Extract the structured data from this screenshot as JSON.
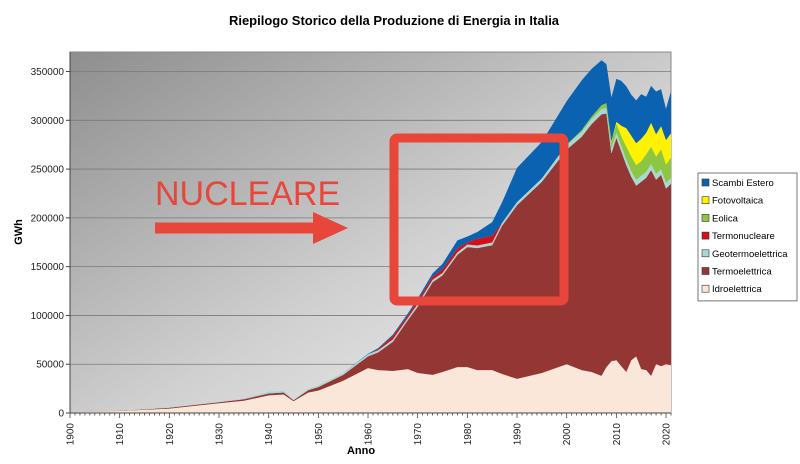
{
  "chart_data": {
    "type": "area",
    "title": "Riepilogo Storico della Produzione di Energia in Italia",
    "xlabel": "Anno",
    "ylabel": "GWh",
    "xlim": [
      1900,
      2021
    ],
    "ylim": [
      0,
      370000
    ],
    "xticks": [
      1900,
      1910,
      1920,
      1930,
      1940,
      1950,
      1960,
      1970,
      1980,
      1990,
      2000,
      2010,
      2020
    ],
    "yticks": [
      0,
      50000,
      100000,
      150000,
      200000,
      250000,
      300000,
      350000
    ],
    "grid": true,
    "legend_position": "right",
    "stacked": true,
    "x": [
      1900,
      1910,
      1920,
      1930,
      1935,
      1940,
      1943,
      1945,
      1948,
      1950,
      1955,
      1960,
      1962,
      1965,
      1968,
      1970,
      1973,
      1975,
      1978,
      1980,
      1982,
      1985,
      1987,
      1990,
      1995,
      2000,
      2003,
      2005,
      2007,
      2008,
      2009,
      2010,
      2011,
      2012,
      2013,
      2014,
      2015,
      2016,
      2017,
      2018,
      2019,
      2020,
      2021
    ],
    "series": [
      {
        "name": "Idroelettrica",
        "values": [
          500,
          2000,
          4500,
          10000,
          12500,
          18000,
          19000,
          12000,
          21000,
          23000,
          33000,
          46000,
          44000,
          43000,
          45000,
          41000,
          39000,
          42000,
          47000,
          47000,
          44000,
          44000,
          40000,
          35000,
          41000,
          50000,
          44000,
          42000,
          38000,
          47000,
          53000,
          54000,
          48000,
          42000,
          54000,
          58000,
          45000,
          44000,
          38000,
          50000,
          48000,
          50000,
          49000
        ]
      },
      {
        "name": "Termoelettrica",
        "values": [
          0,
          200,
          800,
          1000,
          1500,
          2000,
          2000,
          1000,
          2500,
          3500,
          6000,
          12000,
          18000,
          30000,
          50000,
          68000,
          95000,
          99000,
          115000,
          123000,
          125000,
          128000,
          152000,
          178000,
          196000,
          220000,
          239000,
          254000,
          268000,
          260000,
          213000,
          228000,
          220000,
          212000,
          188000,
          175000,
          192000,
          197000,
          211000,
          189000,
          196000,
          180000,
          186000
        ]
      },
      {
        "name": "Geotermoelettrica",
        "values": [
          0,
          0,
          500,
          600,
          800,
          1800,
          1800,
          400,
          1300,
          1800,
          2000,
          2200,
          2300,
          2400,
          2500,
          2700,
          2500,
          2500,
          2600,
          2700,
          2700,
          2700,
          2800,
          3200,
          3400,
          4700,
          5300,
          5300,
          5500,
          5500,
          5300,
          5400,
          5700,
          5600,
          5700,
          5900,
          6200,
          6300,
          6200,
          6100,
          6100,
          6000,
          5900
        ]
      },
      {
        "name": "Termonucleare",
        "values": [
          0,
          0,
          0,
          0,
          0,
          0,
          0,
          0,
          0,
          0,
          0,
          0,
          1000,
          3500,
          2500,
          3200,
          3100,
          3800,
          4300,
          2200,
          6800,
          7000,
          200,
          0,
          0,
          0,
          0,
          0,
          0,
          0,
          0,
          0,
          0,
          0,
          0,
          0,
          0,
          0,
          0,
          0,
          0,
          0,
          0
        ]
      },
      {
        "name": "Eolica",
        "values": [
          0,
          0,
          0,
          0,
          0,
          0,
          0,
          0,
          0,
          0,
          0,
          0,
          0,
          0,
          0,
          0,
          0,
          0,
          0,
          0,
          0,
          0,
          0,
          0,
          0,
          500,
          1500,
          2300,
          4000,
          4900,
          6500,
          9100,
          9900,
          13400,
          14900,
          15200,
          14800,
          17700,
          17700,
          17700,
          20200,
          18800,
          20900
        ]
      },
      {
        "name": "Fotovoltaica",
        "values": [
          0,
          0,
          0,
          0,
          0,
          0,
          0,
          0,
          0,
          0,
          0,
          0,
          0,
          0,
          0,
          0,
          0,
          0,
          0,
          0,
          0,
          0,
          0,
          0,
          0,
          0,
          0,
          0,
          0,
          200,
          700,
          1900,
          10800,
          18900,
          21600,
          22300,
          22900,
          22100,
          24400,
          22700,
          23700,
          24900,
          25000
        ]
      },
      {
        "name": "Scambi Estero",
        "values": [
          0,
          0,
          0,
          0,
          0,
          0,
          0,
          0,
          0,
          0,
          0,
          500,
          1000,
          1500,
          2000,
          2500,
          3500,
          5500,
          8000,
          6000,
          7000,
          14000,
          21000,
          35000,
          37500,
          44500,
          51000,
          49000,
          46000,
          40000,
          45000,
          44000,
          46000,
          43000,
          42000,
          44000,
          46000,
          37000,
          38000,
          44000,
          38000,
          32000,
          42800
        ]
      }
    ]
  },
  "colors": {
    "Idroelettrica": "#fbe6da",
    "Termoelettrica": "#943634",
    "Geotermoelettrica": "#a9d8d3",
    "Termonucleare": "#d40f17",
    "Eolica": "#8dc641",
    "Fotovoltaica": "#fff200",
    "Scambi Estero": "#0a62b0",
    "annotation": "#e8463a"
  },
  "annotation": {
    "text": "NUCLEARE"
  }
}
